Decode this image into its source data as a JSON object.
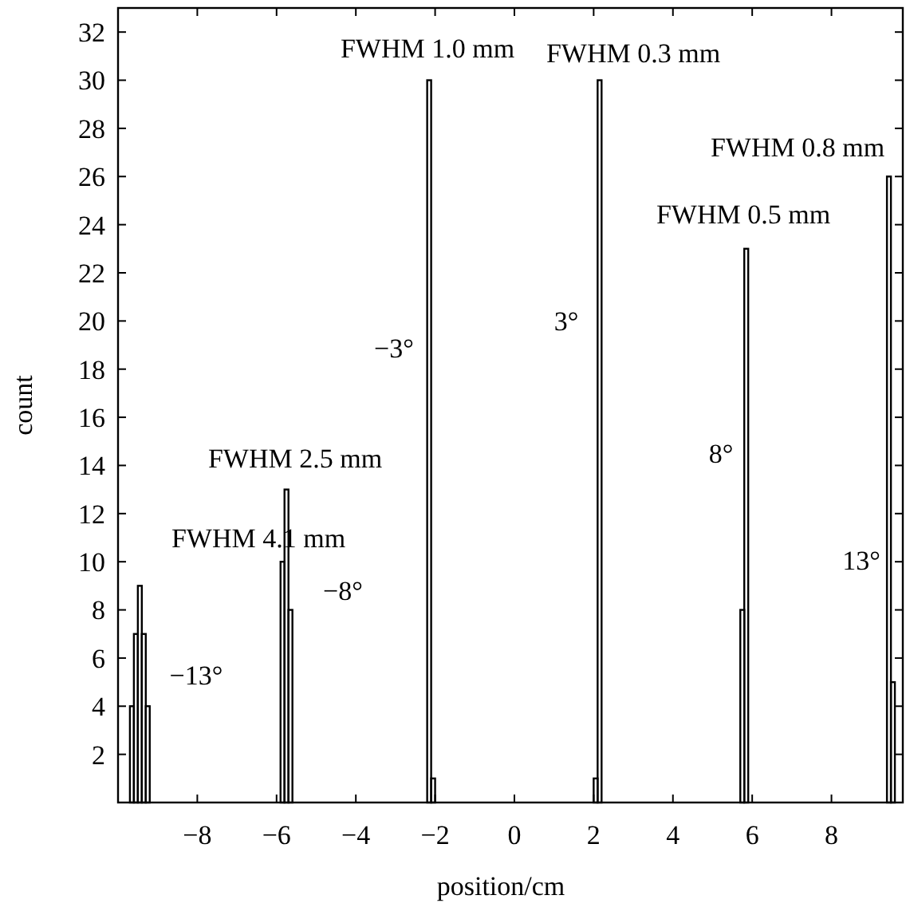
{
  "chart_data": {
    "type": "histogram",
    "xlabel": "position/cm",
    "ylabel": "count",
    "color": "#000000",
    "bins": [
      -9.7,
      -9.6,
      -9.5,
      -9.4,
      -9.3,
      -9.2,
      -5.9,
      -5.8,
      -5.7,
      -5.6,
      -2.2,
      -2.1,
      -2.0,
      2.0,
      2.1,
      2.2,
      5.7,
      5.8,
      5.9,
      9.4,
      9.5,
      9.6
    ],
    "values": [
      4,
      7,
      9,
      7,
      4,
      null,
      10,
      13,
      8,
      null,
      30,
      1,
      null,
      1,
      30,
      null,
      8,
      23,
      null,
      26,
      5
    ],
    "xlim": [
      -10,
      9.8
    ],
    "ylim": [
      0,
      33
    ],
    "xticks": [
      {
        "value": -8,
        "label": "−8"
      },
      {
        "value": -6,
        "label": "−6"
      },
      {
        "value": -4,
        "label": "−4"
      },
      {
        "value": -2,
        "label": "−2"
      },
      0,
      2,
      4,
      6,
      8
    ],
    "yticks": [
      2,
      4,
      6,
      8,
      10,
      12,
      14,
      16,
      18,
      20,
      22,
      24,
      26,
      28,
      30,
      32
    ],
    "grid": false,
    "annotations": [
      "FWHM 4.1 mm",
      "FWHM 2.5 mm",
      "FWHM 1.0 mm",
      "FWHM 0.3 mm",
      "FWHM 0.5 mm",
      "FWHM 0.8 mm",
      "−13°",
      "−8°",
      "−3°",
      "3°",
      "8°",
      "13°"
    ]
  }
}
